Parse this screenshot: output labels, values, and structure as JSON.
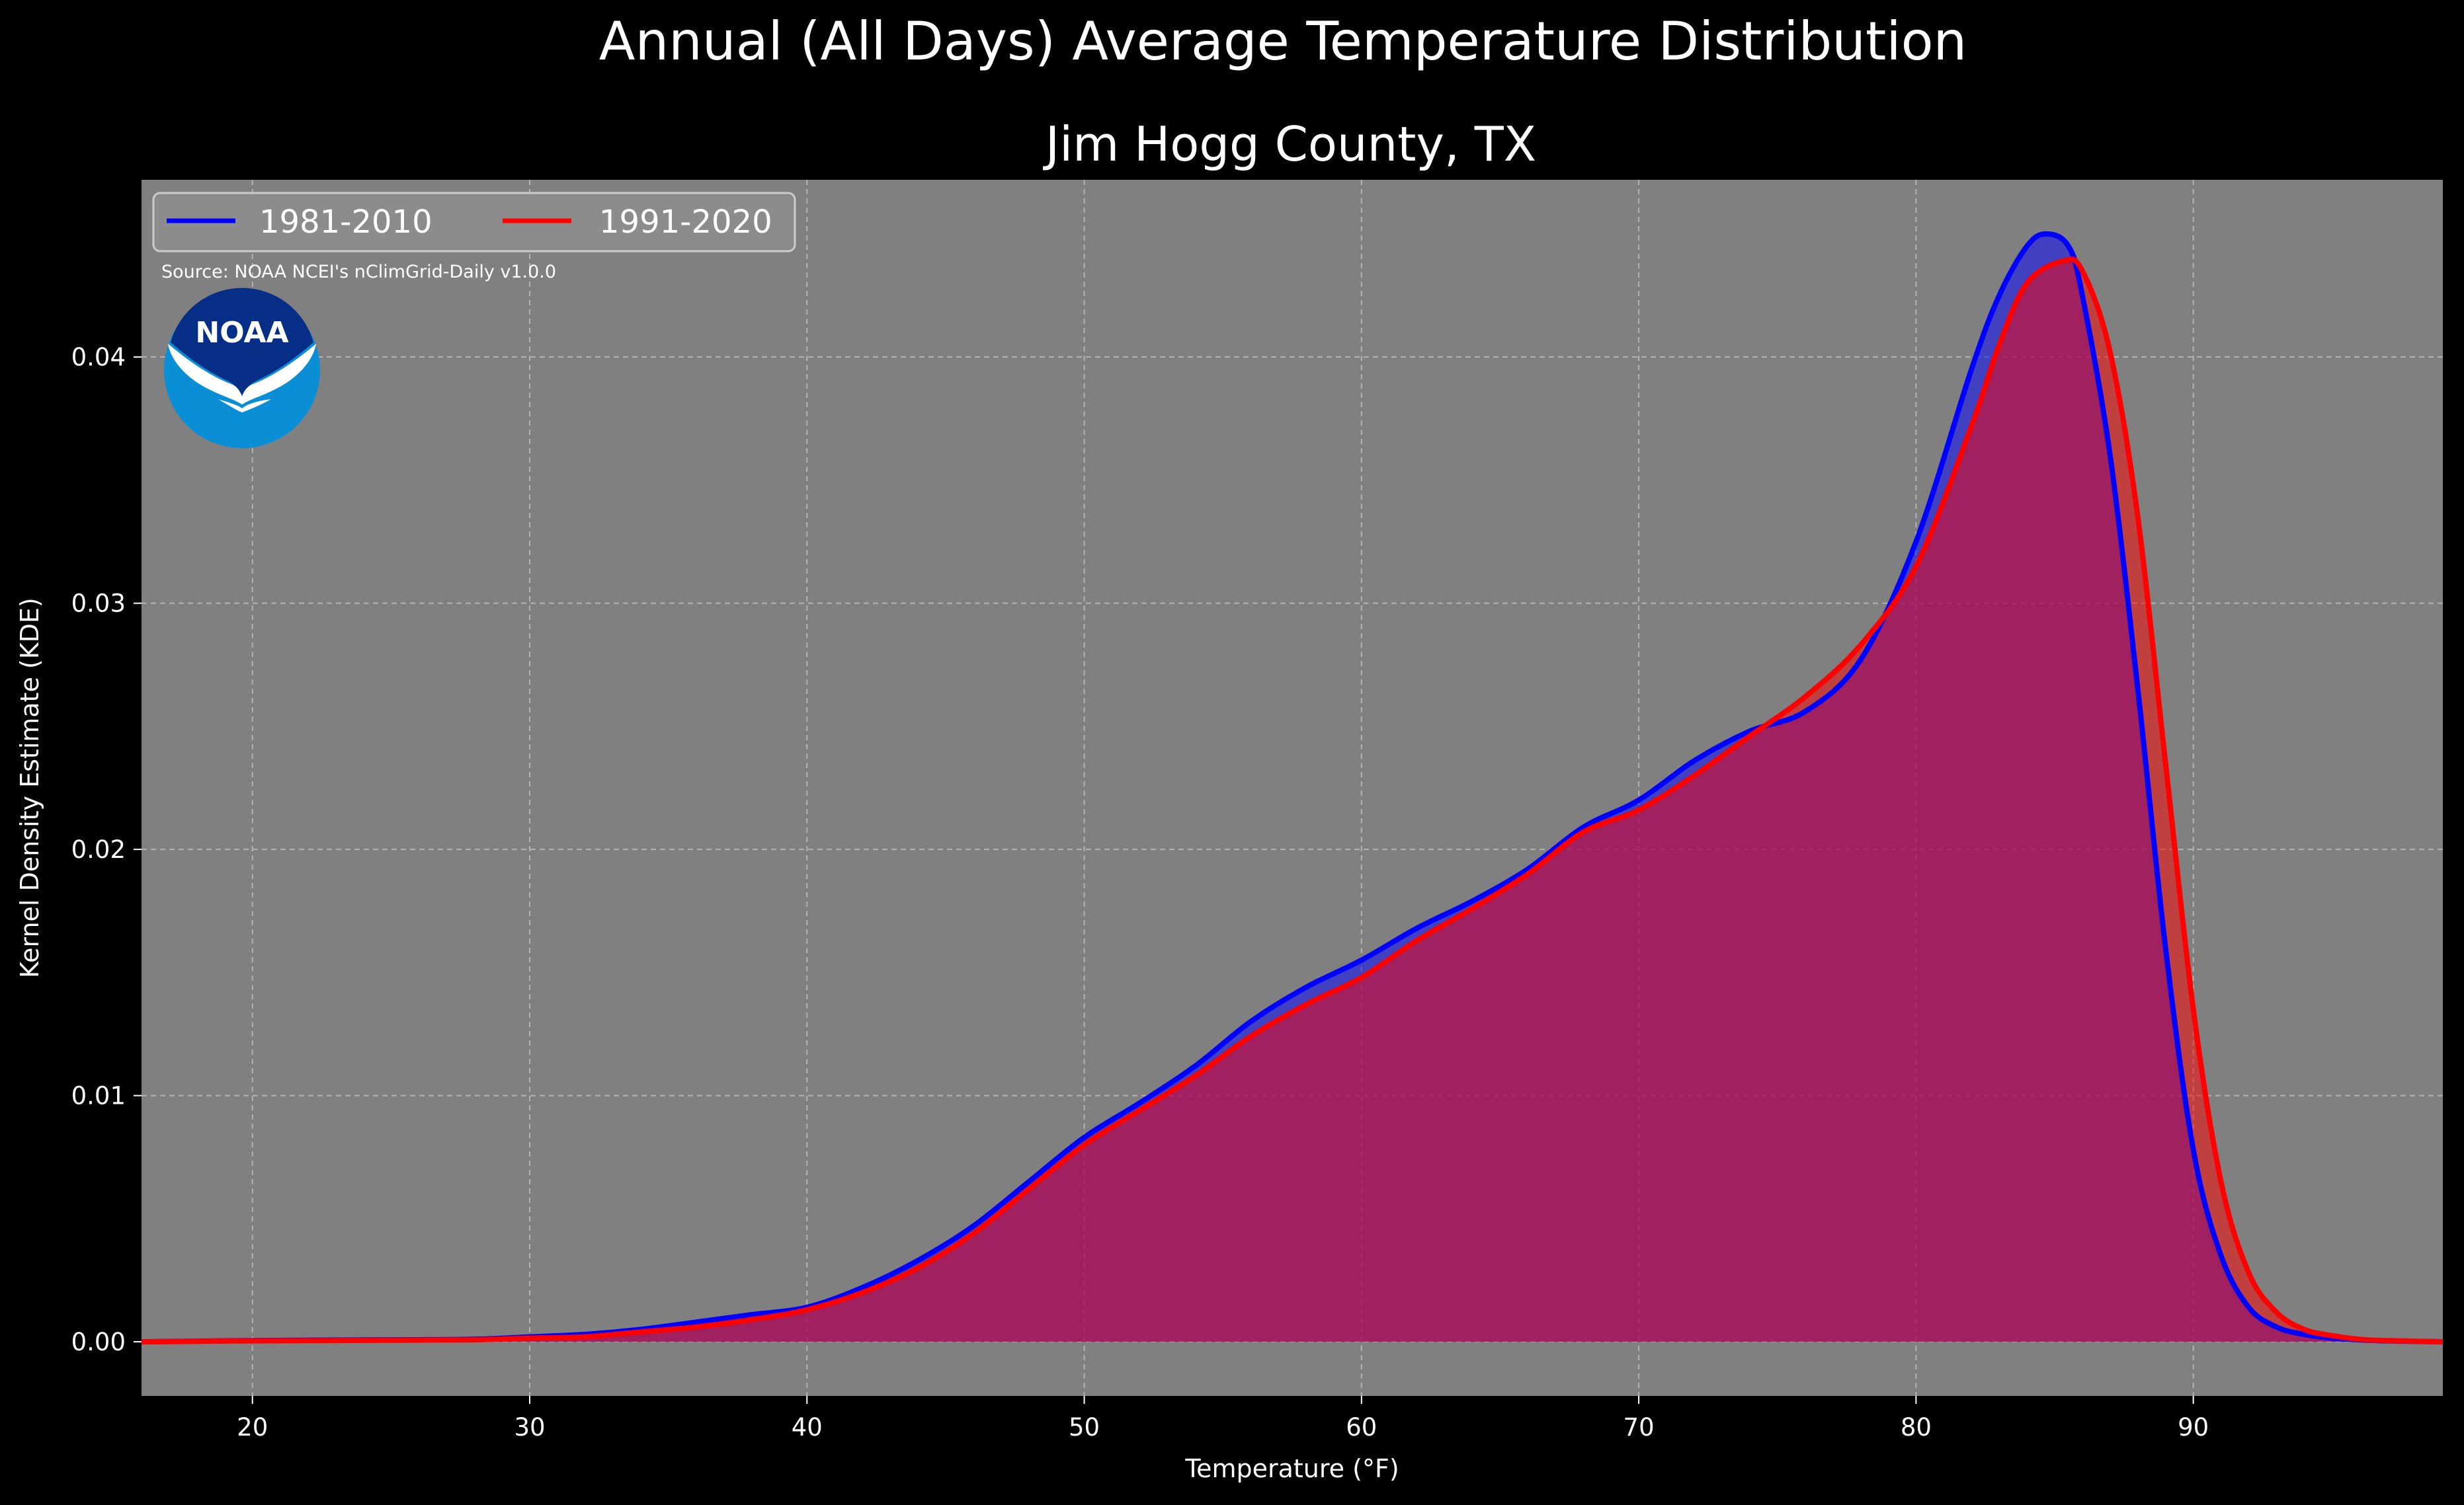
{
  "title": "Annual (All Days) Average Temperature Distribution",
  "subtitle": "Jim Hogg County, TX",
  "source": "Source: NOAA NCEI's nClimGrid-Daily v1.0.0",
  "logo_text": "NOAA",
  "colors": {
    "background": "#000000",
    "plot_bg": "#808080",
    "series_1981": "#0000ff",
    "series_1991": "#ff0000",
    "logo_outer": "#0a8fd6",
    "logo_inner": "#062e87"
  },
  "chart_data": {
    "type": "area",
    "title": "Annual (All Days) Average Temperature Distribution",
    "subtitle": "Jim Hogg County, TX",
    "xlabel": "Temperature (°F)",
    "ylabel": "Kernel Density Estimate (KDE)",
    "xlim": [
      16,
      99
    ],
    "ylim": [
      -0.0022,
      0.0472
    ],
    "xticks": [
      20,
      30,
      40,
      50,
      60,
      70,
      80,
      90
    ],
    "xtick_labels": [
      "20",
      "30",
      "40",
      "50",
      "60",
      "70",
      "80",
      "90"
    ],
    "yticks": [
      0.0,
      0.01,
      0.02,
      0.03,
      0.04
    ],
    "ytick_labels": [
      "0.00",
      "0.01",
      "0.02",
      "0.03",
      "0.04"
    ],
    "grid": true,
    "legend_position": "top-left",
    "series": [
      {
        "name": "1981-2010",
        "color": "#0000ff",
        "x": [
          16,
          20,
          25,
          28,
          30,
          32,
          34,
          36,
          38,
          40,
          42,
          44,
          46,
          48,
          50,
          52,
          54,
          56,
          58,
          60,
          62,
          64,
          66,
          68,
          70,
          72,
          74,
          76,
          78,
          80,
          82,
          83,
          84,
          84.7,
          85.5,
          86,
          87,
          88,
          89,
          90,
          91,
          92,
          93,
          94,
          95,
          96,
          97,
          99
        ],
        "y": [
          0,
          5e-05,
          8e-05,
          0.0001,
          0.0002,
          0.0003,
          0.0005,
          0.0008,
          0.0011,
          0.0014,
          0.0022,
          0.0033,
          0.0047,
          0.0065,
          0.0083,
          0.0097,
          0.0112,
          0.013,
          0.0144,
          0.0155,
          0.0168,
          0.0179,
          0.0192,
          0.0209,
          0.022,
          0.0236,
          0.0248,
          0.0256,
          0.0277,
          0.0325,
          0.0395,
          0.0425,
          0.0445,
          0.045,
          0.0445,
          0.0425,
          0.036,
          0.0265,
          0.016,
          0.0078,
          0.0035,
          0.0014,
          0.0006,
          0.0003,
          0.00015,
          8e-05,
          4e-05,
          0.0
        ]
      },
      {
        "name": "1991-2020",
        "color": "#ff0000",
        "x": [
          16,
          20,
          25,
          28,
          30,
          32,
          34,
          36,
          38,
          40,
          42,
          44,
          46,
          48,
          50,
          52,
          54,
          56,
          58,
          60,
          62,
          64,
          66,
          68,
          70,
          72,
          74,
          76,
          78,
          80,
          82,
          83,
          84,
          85.3,
          86,
          87,
          88,
          89,
          90,
          91,
          92,
          93,
          94,
          95,
          96,
          97,
          99
        ],
        "y": [
          0,
          4e-05,
          6e-05,
          8e-05,
          0.00015,
          0.0002,
          0.0004,
          0.0006,
          0.0009,
          0.0013,
          0.002,
          0.003,
          0.0044,
          0.0062,
          0.008,
          0.0094,
          0.0108,
          0.0124,
          0.0137,
          0.0148,
          0.0163,
          0.0176,
          0.019,
          0.0207,
          0.0216,
          0.023,
          0.0246,
          0.0262,
          0.0283,
          0.0315,
          0.0372,
          0.0405,
          0.043,
          0.0439,
          0.0435,
          0.0402,
          0.0335,
          0.0235,
          0.0135,
          0.0065,
          0.0028,
          0.0012,
          0.0005,
          0.00025,
          0.0001,
          5e-05,
          0.0
        ]
      }
    ]
  }
}
